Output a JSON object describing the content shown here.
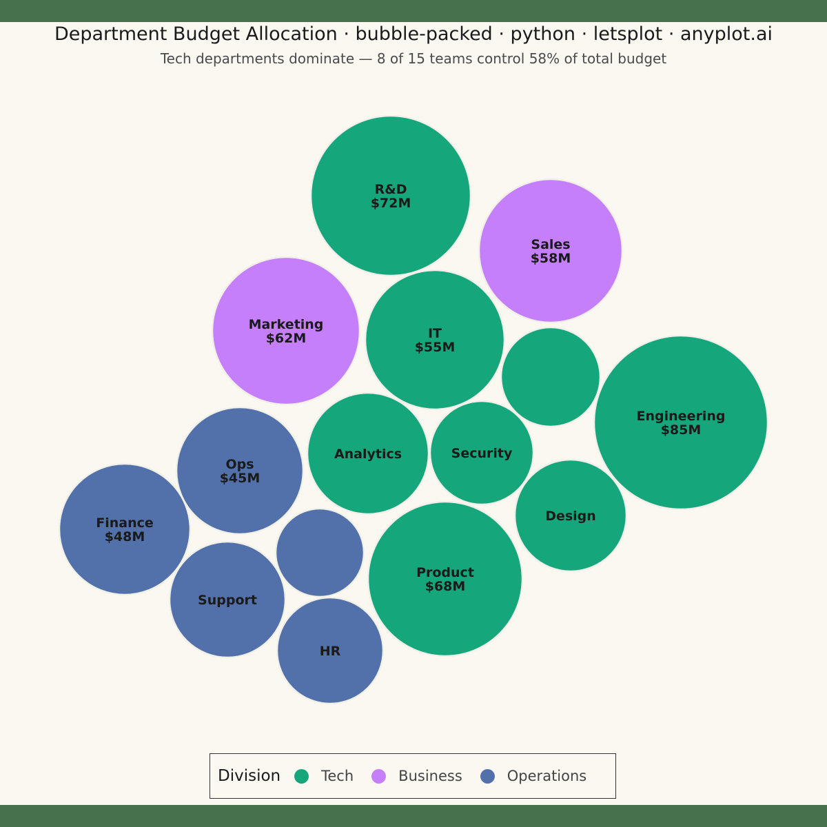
{
  "title": "Department Budget Allocation · bubble-packed · python · letsplot · anyplot.ai",
  "subtitle": "Tech departments dominate — 8 of 15 teams control 58% of total budget",
  "legend": {
    "title": "Division",
    "items": [
      {
        "label": "Tech",
        "color": "#16A67C"
      },
      {
        "label": "Business",
        "color": "#C67FFB"
      },
      {
        "label": "Operations",
        "color": "#5271AA"
      }
    ]
  },
  "chart_data": {
    "type": "bubble-packed",
    "size_unit": "$M",
    "bubbles": [
      {
        "name": "Engineering",
        "label": "Engineering",
        "value_label": "$85M",
        "value": 85,
        "division": "Tech"
      },
      {
        "name": "R&D",
        "label": "R&D",
        "value_label": "$72M",
        "value": 72,
        "division": "Tech"
      },
      {
        "name": "Product",
        "label": "Product",
        "value_label": "$68M",
        "value": 68,
        "division": "Tech"
      },
      {
        "name": "Marketing",
        "label": "Marketing",
        "value_label": "$62M",
        "value": 62,
        "division": "Business"
      },
      {
        "name": "Sales",
        "label": "Sales",
        "value_label": "$58M",
        "value": 58,
        "division": "Business"
      },
      {
        "name": "IT",
        "label": "IT",
        "value_label": "$55M",
        "value": 55,
        "division": "Tech"
      },
      {
        "name": "Finance",
        "label": "Finance",
        "value_label": "$48M",
        "value": 48,
        "division": "Operations"
      },
      {
        "name": "Ops",
        "label": "Ops",
        "value_label": "$45M",
        "value": 45,
        "division": "Operations"
      },
      {
        "name": "Analytics",
        "label": "Analytics",
        "value_label": "",
        "value": 40,
        "division": "Tech"
      },
      {
        "name": "Design",
        "label": "Design",
        "value_label": "",
        "value": 35,
        "division": "Tech"
      },
      {
        "name": "Security",
        "label": "Security",
        "value_label": "",
        "value": 30,
        "division": "Tech"
      },
      {
        "name": "Support",
        "label": "Support",
        "value_label": "",
        "value": 38,
        "division": "Operations"
      },
      {
        "name": "HR",
        "label": "HR",
        "value_label": "",
        "value": 32,
        "division": "Operations"
      },
      {
        "name": "unlabeled-tech",
        "label": "",
        "value_label": "",
        "value": 28,
        "division": "Tech"
      },
      {
        "name": "unlabeled-operations",
        "label": "",
        "value_label": "",
        "value": 22,
        "division": "Operations"
      }
    ]
  }
}
